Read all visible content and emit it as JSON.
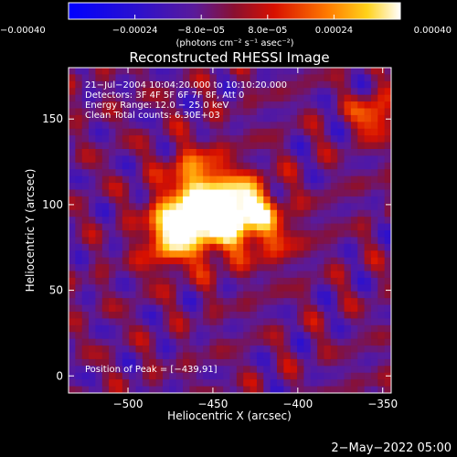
{
  "chart_data": {
    "type": "heatmap",
    "title": "Reconstructed RHESSI Image",
    "xlabel": "Heliocentric X (arcsec)",
    "ylabel": "Heliocentric Y (arcsec)",
    "xlim": [
      -535,
      -345
    ],
    "ylim": [
      -10,
      180
    ],
    "x_ticks": [
      -500,
      -450,
      -400,
      -350
    ],
    "y_ticks": [
      0,
      50,
      100,
      150
    ],
    "x_tick_labels": [
      "−500",
      "−450",
      "−400",
      "−350"
    ],
    "y_tick_labels": [
      "0",
      "50",
      "100",
      "150"
    ],
    "info_lines": [
      "21−Jul−2004 10:04:20.000 to 10:10:20.000",
      "Detectors: 3F 4F 5F 6F 7F 8F, Att 0",
      "Energy Range: 12.0 − 25.0 keV",
      "Clean     Total counts: 6.30E+03"
    ],
    "peak_annotation": "Position of Peak = [−439,91]",
    "peak_position": [
      -439,
      91
    ],
    "colorbar": {
      "min": -0.0004,
      "max": 0.0004,
      "ticks": [
        -0.0004,
        -0.00024,
        -8e-05,
        8e-05,
        0.00024,
        0.0004
      ],
      "tick_labels": [
        "−0.00040",
        "−0.00024",
        "−8.0e−05",
        "8.0e−05",
        "0.00024",
        "0.00040"
      ],
      "unit_label": "(photons cm⁻² s⁻¹ asec⁻²)",
      "colormap": "blue-purple-red-yellow-white"
    },
    "sources": [
      {
        "x": -455,
        "y": 92,
        "amp": 1.0,
        "sigma": 16
      },
      {
        "x": -432,
        "y": 98,
        "amp": 0.85,
        "sigma": 12
      },
      {
        "x": -475,
        "y": 88,
        "amp": 0.55,
        "sigma": 10
      },
      {
        "x": -460,
        "y": 118,
        "amp": 0.45,
        "sigma": 12
      },
      {
        "x": -415,
        "y": 82,
        "amp": 0.35,
        "sigma": 12
      },
      {
        "x": -355,
        "y": 152,
        "amp": 0.65,
        "sigma": 8
      },
      {
        "x": -480,
        "y": 72,
        "amp": 0.3,
        "sigma": 10
      }
    ]
  },
  "footer": {
    "timestamp": "2−May−2022 05:00"
  }
}
